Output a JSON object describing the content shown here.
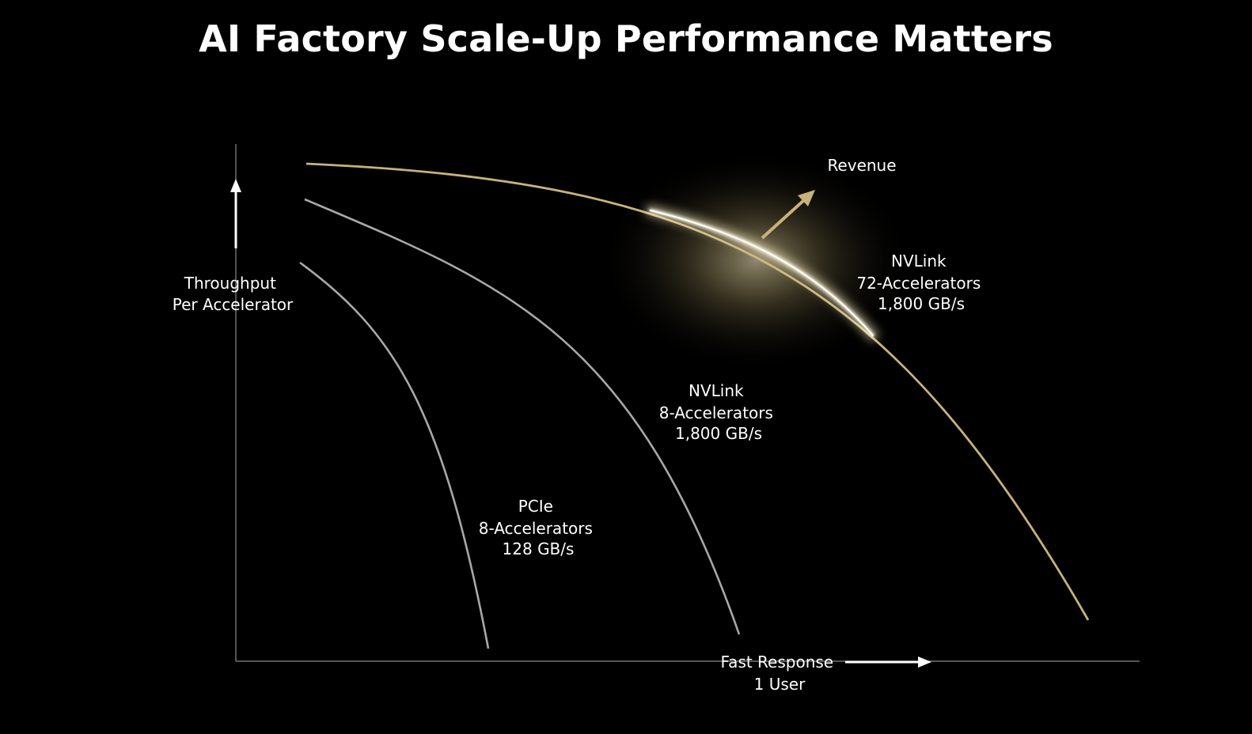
{
  "title": "AI Factory Scale-Up Performance Matters",
  "colors": {
    "background": "#000000",
    "axis": "#8a8a8a",
    "gray_curve": "#a8a8a8",
    "gold_curve": "#c8b27a",
    "glow": "#fff4c8",
    "text": "#ffffff"
  },
  "chart_data": {
    "type": "line",
    "title": "AI Factory Scale-Up Performance Matters",
    "ylabel": [
      "Throughput",
      "Per Accelerator"
    ],
    "xlabel": [
      "Fast Response",
      "1 User"
    ],
    "axis_ticks": false,
    "grid": false,
    "series": [
      {
        "name": [
          "PCIe",
          "8-Accelerators",
          "128 GB/s"
        ]
      },
      {
        "name": [
          "NVLink",
          "8-Accelerators",
          "1,800 GB/s"
        ]
      },
      {
        "name": [
          "NVLink",
          "72-Accelerators",
          "1,800 GB/s"
        ]
      }
    ],
    "annotation": "Revenue"
  }
}
